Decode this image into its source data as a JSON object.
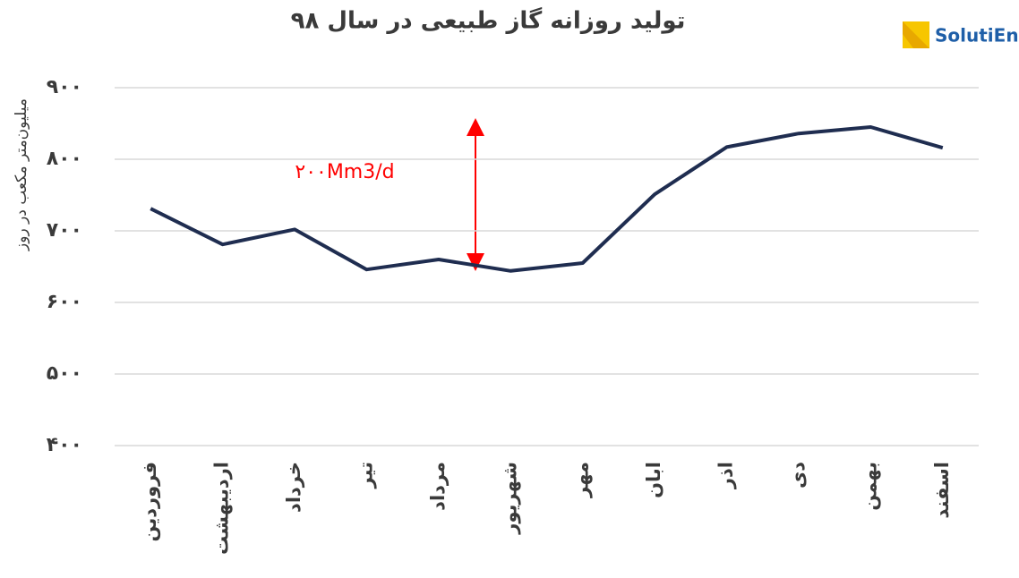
{
  "chart_data": {
    "type": "line",
    "title": "تولید روزانه گاز طبیعی در سال ۹۸",
    "y_label": "میلیون‌متر مکعب در روز",
    "annotation": "۲۰۰Mm3/d",
    "logo": "SolutiEn",
    "categories": [
      "فروردین",
      "اردیبهشت",
      "خرداد",
      "تیر",
      "مرداد",
      "شهریور",
      "مهر",
      "ابان",
      "اذر",
      "دی",
      "بهمن",
      "اسفند"
    ],
    "series": [
      {
        "name": "تولید روزانه",
        "color": "#1f2d50",
        "values": [
          731,
          681,
          702,
          646,
          660,
          644,
          655,
          751,
          817,
          836,
          845,
          816
        ]
      }
    ],
    "ylim": [
      400,
      900
    ],
    "yticks": [
      {
        "value": 400,
        "label": "۴۰۰"
      },
      {
        "value": 500,
        "label": "۵۰۰"
      },
      {
        "value": 600,
        "label": "۶۰۰"
      },
      {
        "value": 700,
        "label": "۷۰۰"
      },
      {
        "value": 800,
        "label": "۸۰۰"
      },
      {
        "value": 900,
        "label": "۹۰۰"
      }
    ],
    "grid": true
  }
}
